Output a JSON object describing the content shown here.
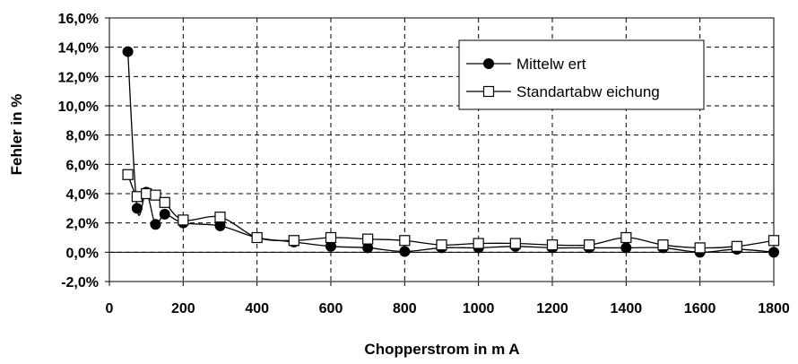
{
  "chart_data": {
    "type": "line",
    "title": "",
    "xlabel": "Chopperstrom in m A",
    "ylabel": "Fehler in %",
    "xlim": [
      0,
      1800
    ],
    "ylim": [
      -2.0,
      16.0
    ],
    "grid": true,
    "legend_position": "top-right",
    "x_ticks": [
      "0",
      "200",
      "400",
      "600",
      "800",
      "1000",
      "1200",
      "1400",
      "1600",
      "1800"
    ],
    "y_ticks": [
      "-2,0%",
      "0,0%",
      "2,0%",
      "4,0%",
      "6,0%",
      "8,0%",
      "10,0%",
      "12,0%",
      "14,0%",
      "16,0%"
    ],
    "series": [
      {
        "name": "Mittelw ert",
        "marker": "filled-circle",
        "color": "#000000",
        "x": [
          50,
          75,
          100,
          125,
          150,
          200,
          300,
          400,
          500,
          600,
          700,
          800,
          900,
          1000,
          1100,
          1200,
          1300,
          1400,
          1500,
          1600,
          1700,
          1800
        ],
        "y": [
          13.7,
          3.0,
          4.1,
          1.9,
          2.6,
          2.0,
          1.8,
          1.0,
          0.7,
          0.4,
          0.3,
          0.05,
          0.3,
          0.3,
          0.4,
          0.3,
          0.3,
          0.3,
          0.3,
          0.0,
          0.2,
          0.0
        ]
      },
      {
        "name": "Standartabw eichung",
        "marker": "open-square",
        "color": "#000000",
        "x": [
          50,
          75,
          100,
          125,
          150,
          200,
          300,
          400,
          500,
          600,
          700,
          800,
          900,
          1000,
          1100,
          1200,
          1300,
          1400,
          1500,
          1600,
          1700,
          1800
        ],
        "y": [
          5.3,
          3.8,
          4.0,
          3.9,
          3.4,
          2.2,
          2.4,
          1.0,
          0.8,
          1.0,
          0.9,
          0.8,
          0.5,
          0.6,
          0.6,
          0.5,
          0.5,
          1.0,
          0.5,
          0.3,
          0.4,
          0.8
        ]
      }
    ]
  }
}
